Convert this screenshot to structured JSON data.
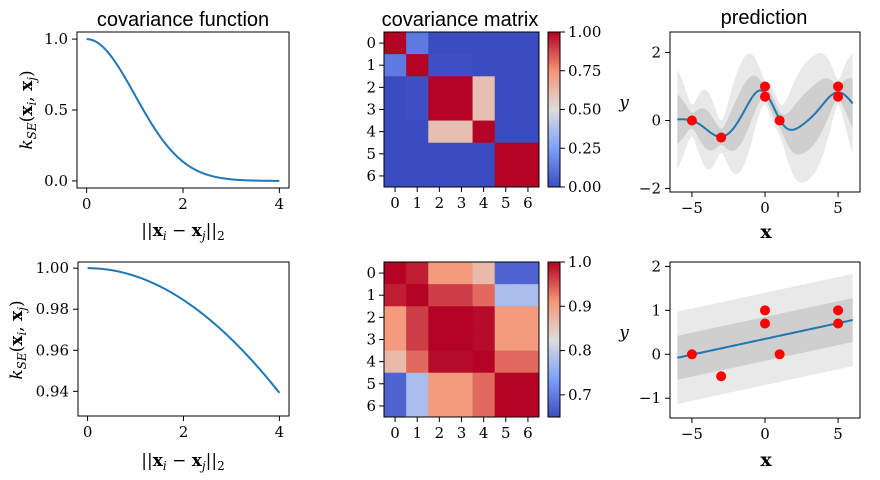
{
  "chart_data": [
    {
      "id": "cov_fn_top",
      "type": "line",
      "title": "covariance function",
      "xlabel": "||x_i − x_j||_2",
      "ylabel": "k_SE(x_i, x_j)",
      "xlim": [
        -0.2,
        4.2
      ],
      "ylim": [
        -0.05,
        1.05
      ],
      "xticks": [
        0,
        2,
        4
      ],
      "xtick_labels": [
        "0",
        "2",
        "4"
      ],
      "yticks": [
        0,
        0.5,
        1.0
      ],
      "ytick_labels": [
        "0.0",
        "0.5",
        "1.0"
      ],
      "lengthscale": 1.0,
      "color": "#1f77b4"
    },
    {
      "id": "cov_mat_top",
      "type": "heatmap",
      "title": "covariance matrix",
      "labels": [
        "0",
        "1",
        "2",
        "3",
        "4",
        "5",
        "6"
      ],
      "x_points": [
        -5,
        -3,
        0,
        0,
        1,
        5,
        5
      ],
      "lengthscale": 1.0,
      "colorbar": {
        "min": 0.0,
        "max": 1.0,
        "ticks": [
          0.0,
          0.25,
          0.5,
          0.75,
          1.0
        ],
        "tick_labels": [
          "0.00",
          "0.25",
          "0.50",
          "0.75",
          "1.00"
        ]
      },
      "colormap": "coolwarm"
    },
    {
      "id": "pred_top",
      "type": "line",
      "title": "prediction",
      "xlabel": "x",
      "ylabel": "y",
      "xlim": [
        -6.5,
        6.5
      ],
      "ylim": [
        -2.1,
        2.6
      ],
      "xticks": [
        -5,
        0,
        5
      ],
      "xtick_labels": [
        "−5",
        "0",
        "5"
      ],
      "yticks": [
        -2,
        0,
        2
      ],
      "ytick_labels": [
        "−2",
        "0",
        "2"
      ],
      "lengthscale": 1.0,
      "points": {
        "x": [
          -5,
          -3,
          0,
          0,
          1,
          5,
          5
        ],
        "y": [
          0,
          -0.5,
          1,
          0.7,
          0,
          1,
          0.7
        ]
      },
      "line_color": "#1f77b4",
      "point_color": "#ff0000"
    },
    {
      "id": "cov_fn_bottom",
      "type": "line",
      "title": "",
      "xlabel": "||x_i − x_j||_2",
      "ylabel": "k_SE(x_i, x_j)",
      "xlim": [
        -0.2,
        4.2
      ],
      "ylim": [
        0.928,
        1.003
      ],
      "xticks": [
        0,
        2,
        4
      ],
      "xtick_labels": [
        "0",
        "2",
        "4"
      ],
      "yticks": [
        0.94,
        0.96,
        0.98,
        1.0
      ],
      "ytick_labels": [
        "0.94",
        "0.96",
        "0.98",
        "1.00"
      ],
      "lengthscale": 11.3,
      "color": "#1f77b4"
    },
    {
      "id": "cov_mat_bottom",
      "type": "heatmap",
      "title": "",
      "labels": [
        "0",
        "1",
        "2",
        "3",
        "4",
        "5",
        "6"
      ],
      "x_points": [
        -5,
        -3,
        0,
        0,
        1,
        5,
        5
      ],
      "lengthscale": 11.3,
      "colorbar": {
        "min": 0.65,
        "max": 1.0,
        "ticks": [
          0.7,
          0.8,
          0.9,
          1.0
        ],
        "tick_labels": [
          "0.7",
          "0.8",
          "0.9",
          "1.0"
        ]
      },
      "colormap": "coolwarm"
    },
    {
      "id": "pred_bottom",
      "type": "line",
      "title": "",
      "xlabel": "x",
      "ylabel": "y",
      "xlim": [
        -6.5,
        6.5
      ],
      "ylim": [
        -1.45,
        2.1
      ],
      "xticks": [
        -5,
        0,
        5
      ],
      "xtick_labels": [
        "−5",
        "0",
        "5"
      ],
      "yticks": [
        -1,
        0,
        1,
        2
      ],
      "ytick_labels": [
        "−1",
        "0",
        "1",
        "2"
      ],
      "points": {
        "x": [
          -5,
          -3,
          0,
          0,
          1,
          5,
          5
        ],
        "y": [
          0,
          -0.5,
          1,
          0.7,
          0,
          1,
          0.7
        ]
      },
      "mean_line": {
        "x": [
          -6,
          6
        ],
        "y": [
          -0.08,
          0.78
        ]
      },
      "inner_band_halfwidth": 0.5,
      "outer_band_halfwidth": 1.05,
      "line_color": "#1f77b4",
      "point_color": "#ff0000"
    }
  ]
}
